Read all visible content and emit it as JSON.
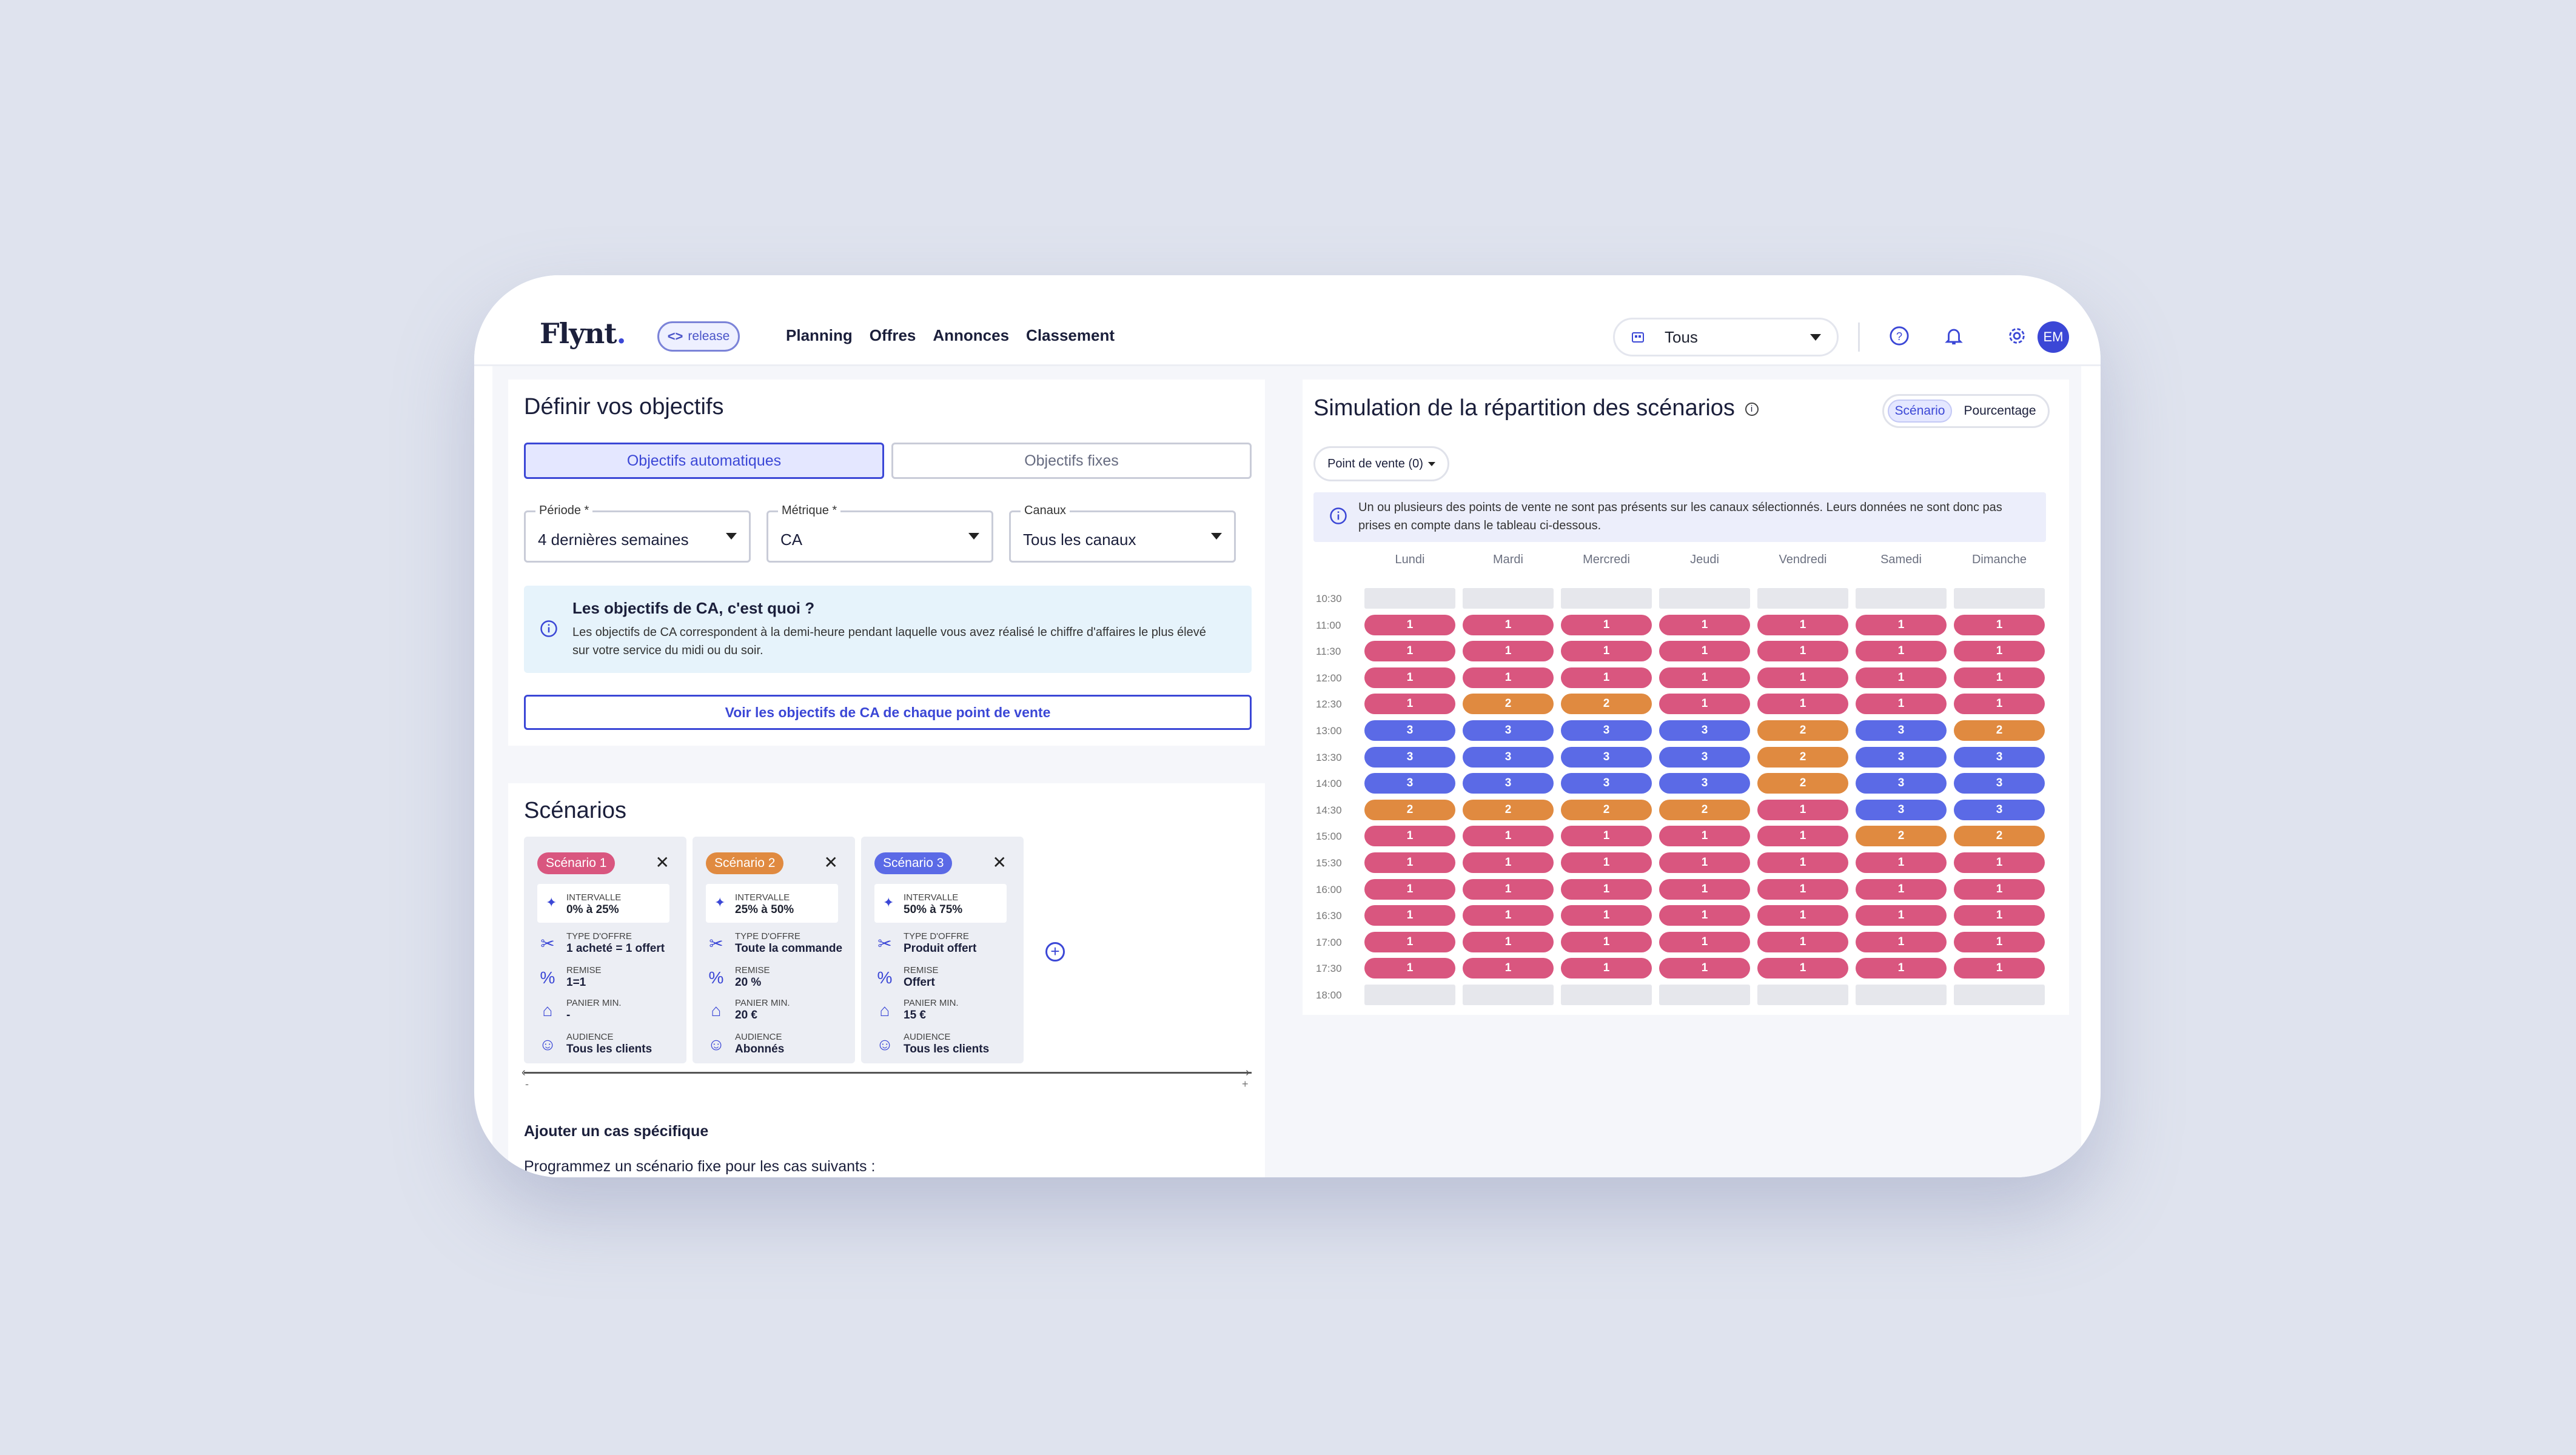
{
  "header": {
    "logo": "Flynt",
    "release_label": "release",
    "nav": [
      "Planning",
      "Offres",
      "Annonces",
      "Classement"
    ],
    "store_selector": "Tous",
    "avatar_initials": "EM"
  },
  "objectives": {
    "title": "Définir vos objectifs",
    "tabs": [
      "Objectifs automatiques",
      "Objectifs fixes"
    ],
    "fields": [
      {
        "label": "Période *",
        "value": "4 dernières semaines"
      },
      {
        "label": "Métrique *",
        "value": "CA"
      },
      {
        "label": "Canaux",
        "value": "Tous les canaux"
      }
    ],
    "info_title": "Les objectifs de CA, c'est quoi ?",
    "info_text_1": "Les objectifs de CA correspondent à la demi-heure pendant laquelle vous avez réalisé le chiffre d'affaires le plus élevé",
    "info_text_2": "sur votre service du midi ou du soir.",
    "link_button": "Voir les objectifs de CA de chaque point de vente"
  },
  "scenarios": {
    "title": "Scénarios",
    "cards": [
      {
        "name": "Scénario 1",
        "color": "#d9567f",
        "interval_label": "INTERVALLE",
        "interval": "0% à 25%",
        "offer_label": "TYPE D'OFFRE",
        "offer": "1 acheté = 1 offert",
        "discount_label": "REMISE",
        "discount": "1=1",
        "basket_label": "PANIER MIN.",
        "basket": "-",
        "audience_label": "AUDIENCE",
        "audience": "Tous les clients"
      },
      {
        "name": "Scénario 2",
        "color": "#e08a40",
        "interval_label": "INTERVALLE",
        "interval": "25% à 50%",
        "offer_label": "TYPE D'OFFRE",
        "offer": "Toute la commande",
        "discount_label": "REMISE",
        "discount": "20 %",
        "basket_label": "PANIER MIN.",
        "basket": "20 €",
        "audience_label": "AUDIENCE",
        "audience": "Abonnés"
      },
      {
        "name": "Scénario 3",
        "color": "#5b6ae6",
        "interval_label": "INTERVALLE",
        "interval": "50% à 75%",
        "offer_label": "TYPE D'OFFRE",
        "offer": "Produit offert",
        "discount_label": "REMISE",
        "discount": "Offert",
        "basket_label": "PANIER MIN.",
        "basket": "15 €",
        "audience_label": "AUDIENCE",
        "audience": "Tous les clients"
      }
    ],
    "axis_minus": "-",
    "axis_plus": "+",
    "specific_title": "Ajouter un cas spécifique",
    "specific_text": "Programmez un scénario fixe pour les cas suivants :"
  },
  "simulation": {
    "title": "Simulation de la répartition des scénarios",
    "toggle": [
      "Scénario",
      "Pourcentage"
    ],
    "filter": "Point de vente (0)",
    "alert_1": "Un ou plusieurs des points de vente ne sont pas présents sur les canaux sélectionnés. Leurs données ne sont donc pas",
    "alert_2": "prises en compte dans le tableau ci-dessous.",
    "days": [
      "Lundi",
      "Mardi",
      "Mercredi",
      "Jeudi",
      "Vendredi",
      "Samedi",
      "Dimanche"
    ],
    "times": [
      "10:30",
      "11:00",
      "11:30",
      "12:00",
      "12:30",
      "13:00",
      "13:30",
      "14:00",
      "14:30",
      "15:00",
      "15:30",
      "16:00",
      "16:30",
      "17:00",
      "17:30",
      "18:00"
    ],
    "colors": {
      "1": "#d9567f",
      "2": "#e08a40",
      "3": "#5b6ae6"
    },
    "rows": [
      [
        0,
        0,
        0,
        0,
        0,
        0,
        0
      ],
      [
        1,
        1,
        1,
        1,
        1,
        1,
        1
      ],
      [
        1,
        1,
        1,
        1,
        1,
        1,
        1
      ],
      [
        1,
        1,
        1,
        1,
        1,
        1,
        1
      ],
      [
        1,
        2,
        2,
        1,
        1,
        1,
        1
      ],
      [
        3,
        3,
        3,
        3,
        2,
        3,
        2
      ],
      [
        3,
        3,
        3,
        3,
        2,
        3,
        3
      ],
      [
        3,
        3,
        3,
        3,
        2,
        3,
        3
      ],
      [
        2,
        2,
        2,
        2,
        1,
        3,
        3
      ],
      [
        1,
        1,
        1,
        1,
        1,
        2,
        2
      ],
      [
        1,
        1,
        1,
        1,
        1,
        1,
        1
      ],
      [
        1,
        1,
        1,
        1,
        1,
        1,
        1
      ],
      [
        1,
        1,
        1,
        1,
        1,
        1,
        1
      ],
      [
        1,
        1,
        1,
        1,
        1,
        1,
        1
      ],
      [
        1,
        1,
        1,
        1,
        1,
        1,
        1
      ],
      [
        0,
        0,
        0,
        0,
        0,
        0,
        0
      ]
    ]
  }
}
